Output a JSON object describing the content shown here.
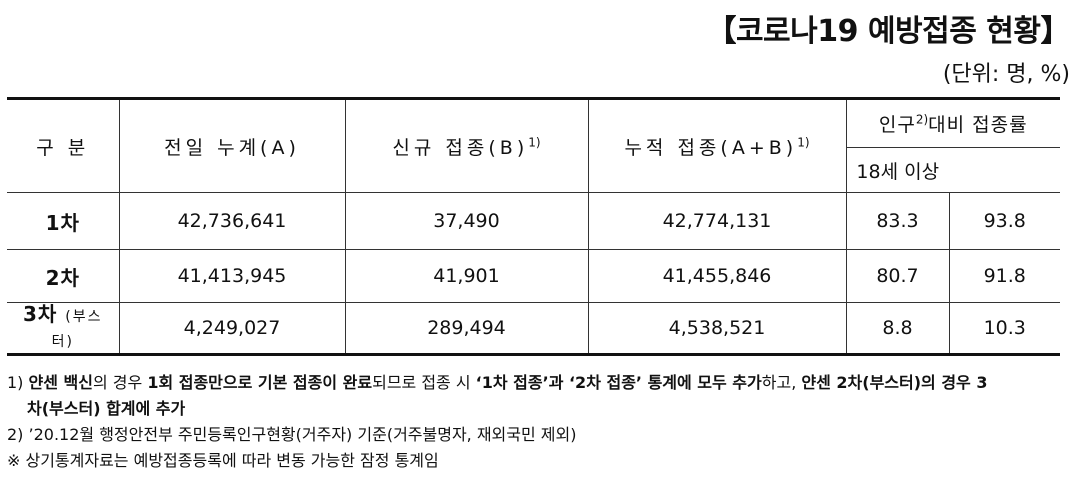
{
  "title": "【코로나19 예방접종 현황】",
  "unit": "(단위: 명, %)",
  "table": {
    "headers": {
      "category": "구 분",
      "prev_total": "전일 누계(A)",
      "new_vacc": "신규 접종(B)",
      "new_vacc_sup": "1)",
      "cumulative": "누적 접종(A+B)",
      "cumulative_sup": "1)",
      "ratio_pre": "인구",
      "ratio_sup": "2)",
      "ratio_post": "대비 접종률",
      "age18": "18세 이상"
    },
    "rows": [
      {
        "label": "1차",
        "label_sub": "",
        "prev": "42,736,641",
        "new": "37,490",
        "cum": "42,774,131",
        "pop": "83.3",
        "adult": "93.8"
      },
      {
        "label": "2차",
        "label_sub": "",
        "prev": "41,413,945",
        "new": "41,901",
        "cum": "41,455,846",
        "pop": "80.7",
        "adult": "91.8"
      },
      {
        "label": "3차",
        "label_sub": "(부스",
        "label_sub2": "터)",
        "prev": "4,249,027",
        "new": "289,494",
        "cum": "4,538,521",
        "pop": "8.8",
        "adult": "10.3"
      }
    ]
  },
  "notes": {
    "n1_a": "1) ",
    "n1_b": "얀센 백신",
    "n1_c": "의 경우 ",
    "n1_d": "1회 접종만으로 기본 접종이 완료",
    "n1_e": "되므로 접종 시 ",
    "n1_f": "‘1차 접종’과 ‘2차 접종’ 통계에 모두 추가",
    "n1_g": "하고, ",
    "n1_h": "얀센 2차(부스터)의 경우 3",
    "n1_i": "차(부스터) 합계에 추가",
    "n2": "2) ’20.12월 행정안전부 주민등록인구현황(거주자) 기준(거주불명자, 재외국민 제외)",
    "n3": "※ 상기통계자료는 예방접종등록에 따라 변동 가능한 잠정 통계임"
  }
}
